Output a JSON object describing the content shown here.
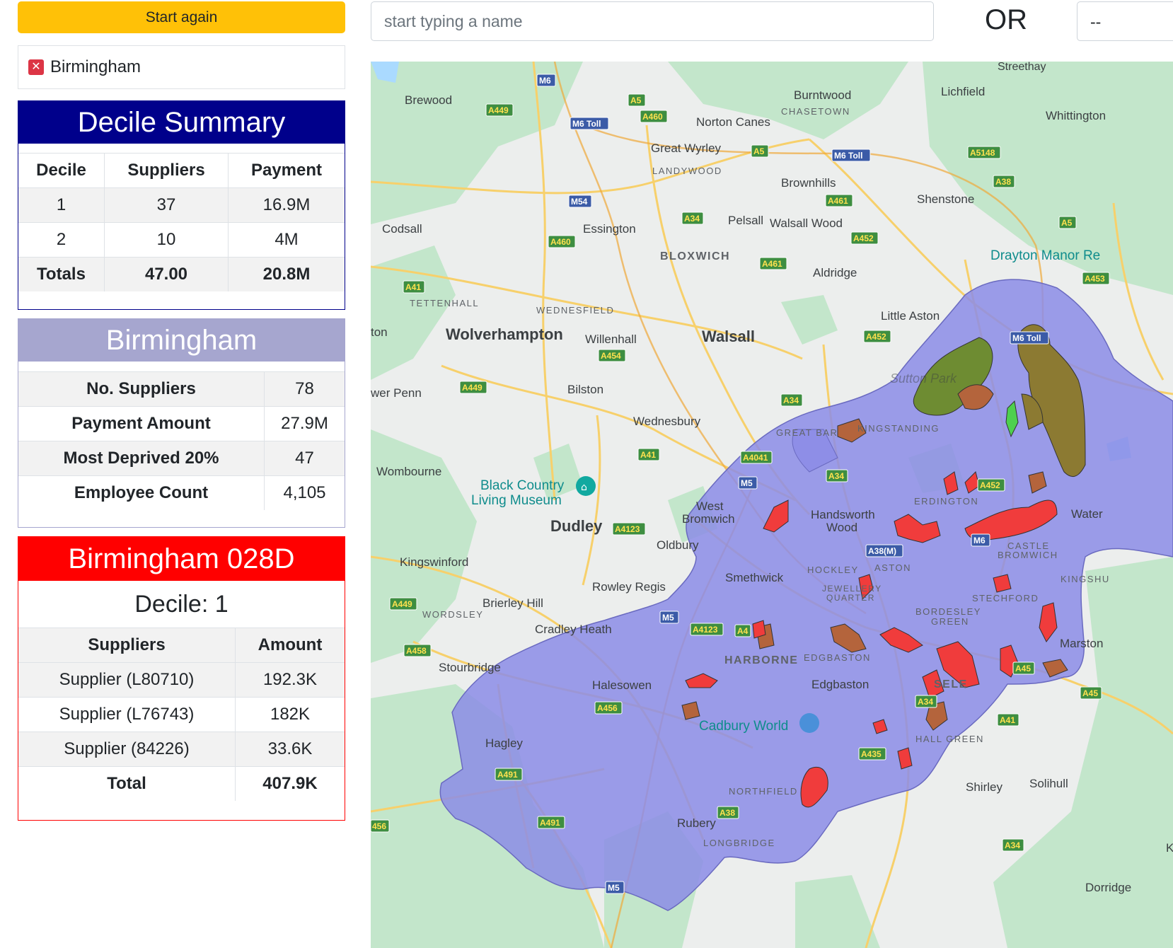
{
  "controls": {
    "start_again_label": "Start again",
    "selected_area": "Birmingham",
    "remove_symbol": "✕",
    "search_placeholder": "start typing a name",
    "or_label": "OR",
    "select_value": "--"
  },
  "decile_summary": {
    "title": "Decile Summary",
    "headers": [
      "Decile",
      "Suppliers",
      "Payment"
    ],
    "rows": [
      {
        "decile": "1",
        "suppliers": "37",
        "payment": "16.9M"
      },
      {
        "decile": "2",
        "suppliers": "10",
        "payment": "4M"
      }
    ],
    "totals": {
      "label": "Totals",
      "suppliers": "47.00",
      "payment": "20.8M"
    }
  },
  "area_summary": {
    "title": "Birmingham",
    "rows": [
      {
        "label": "No. Suppliers",
        "value": "78"
      },
      {
        "label": "Payment Amount",
        "value": "27.9M"
      },
      {
        "label": "Most Deprived 20%",
        "value": "47"
      },
      {
        "label": "Employee Count",
        "value": "4,105"
      }
    ]
  },
  "lsoa_detail": {
    "title": "Birmingham 028D",
    "decile_text": "Decile: 1",
    "headers": [
      "Suppliers",
      "Amount"
    ],
    "rows": [
      {
        "supplier": "Supplier (L80710)",
        "amount": "192.3K"
      },
      {
        "supplier": "Supplier (L76743)",
        "amount": "182K"
      },
      {
        "supplier": "Supplier (84226)",
        "amount": "33.6K"
      }
    ],
    "total": {
      "label": "Total",
      "amount": "407.9K"
    }
  },
  "map": {
    "colors": {
      "region_fill": "#8c8ce6",
      "deprived_decile1": "#f03c3c",
      "deprived_decile2": "#b4643c",
      "deprived_other": "#6e8c32",
      "water": "#aadaff",
      "green": "#c3e6cb"
    },
    "places": {
      "brewood": "Brewood",
      "burntwood": "Burntwood",
      "lichfield": "Lichfield",
      "streethay": "Streethay",
      "chasetown": "CHASETOWN",
      "norton_canes": "Norton Canes",
      "whittington": "Whittington",
      "great_wyrley": "Great Wyrley",
      "landywood": "LANDYWOOD",
      "brownhills": "Brownhills",
      "shenstone": "Shenstone",
      "codsall": "Codsall",
      "essington": "Essington",
      "pelsall": "Pelsall",
      "walsall_wood": "Walsall Wood",
      "bloxwich": "BLOXWICH",
      "drayton_manor": "Drayton Manor Re",
      "aldridge": "Aldridge",
      "tettenhall": "TETTENHALL",
      "wednesfield": "WEDNESFIELD",
      "little_aston": "Little Aston",
      "ton": "ton",
      "wolverhampton": "Wolverhampton",
      "willenhall": "Willenhall",
      "walsall": "Walsall",
      "sutton_park": "Sutton Park",
      "wer_penn": "wer Penn",
      "bilston": "Bilston",
      "wednesbury": "Wednesbury",
      "great_barr": "GREAT BAR",
      "kingstanding": "KINGSTANDING",
      "wombourne": "Wombourne",
      "black_country_1": "Black Country",
      "black_country_2": "Living Museum",
      "dudley": "Dudley",
      "west_bromwich_1": "West",
      "west_bromwich_2": "Bromwich",
      "handsworth_1": "Handsworth",
      "handsworth_2": "Wood",
      "erdington": "ERDINGTON",
      "water": "Water",
      "oldbury": "Oldbury",
      "castle_1": "CASTLE",
      "castle_2": "BROMWICH",
      "kingswinford": "Kingswinford",
      "smethwick": "Smethwick",
      "hockley": "HOCKLEY",
      "aston": "ASTON",
      "kingshu": "KINGSHU",
      "rowley_regis": "Rowley Regis",
      "jewellery_1": "JEWELLERY",
      "jewellery_2": "QUARTER",
      "stechford": "STECHFORD",
      "brierley_hill": "Brierley Hill",
      "bordesley_1": "BORDESLEY",
      "bordesley_2": "GREEN",
      "wordsley": "WORDSLEY",
      "cradley_heath": "Cradley Heath",
      "marston": "Marston",
      "harborne": "HARBORNE",
      "edgbaston_d": "EDGBASTON",
      "stourbridge": "Stourbridge",
      "halesowen": "Halesowen",
      "edgbaston": "Edgbaston",
      "sele": "SELE",
      "cadbury": "Cadbury World",
      "hall_green": "HALL GREEN",
      "hagley": "Hagley",
      "northfield": "NORTHFIELD",
      "shirley": "Shirley",
      "solihull": "Solihull",
      "rubery": "Rubery",
      "longbridge": "LONGBRIDGE",
      "dorridge": "Dorridge",
      "k": "K"
    },
    "roads": {
      "m6": "M6",
      "a5_a": "A5",
      "a449_a": "A449",
      "m6toll_a": "M6 Toll",
      "a460_a": "A460",
      "a5_b": "A5",
      "m6toll_b": "M6 Toll",
      "a5148": "A5148",
      "a38_a": "A38",
      "m54": "M54",
      "a461_a": "A461",
      "a34_a": "A34",
      "a460_b": "A460",
      "a452_a": "A452",
      "a5_c": "A5",
      "a461_b": "A461",
      "a453": "A453",
      "a41_a": "A41",
      "a452_b": "A452",
      "m6toll_c": "M6 Toll",
      "a454": "A454",
      "a449_b": "A449",
      "a34_b": "A34",
      "a41_b": "A41",
      "a4041": "A4041",
      "m5_a": "M5",
      "a34_c": "A34",
      "a452_c": "A452",
      "a4123_a": "A4123",
      "a38m": "A38(M)",
      "m6_b": "M6",
      "a449_c": "A449",
      "m5_b": "M5",
      "a4123_b": "A4123",
      "a4_": "A4",
      "a458": "A458",
      "a45_a": "A45",
      "a456_a": "A456",
      "a34_d": "A34",
      "a45_b": "A45",
      "a41_c": "A41",
      "a435": "A435",
      "a491_a": "A491",
      "a38_b": "A38",
      "a491_b": "A491",
      "a456_b": "456",
      "a34_e": "A34",
      "m5_c": "M5"
    }
  }
}
